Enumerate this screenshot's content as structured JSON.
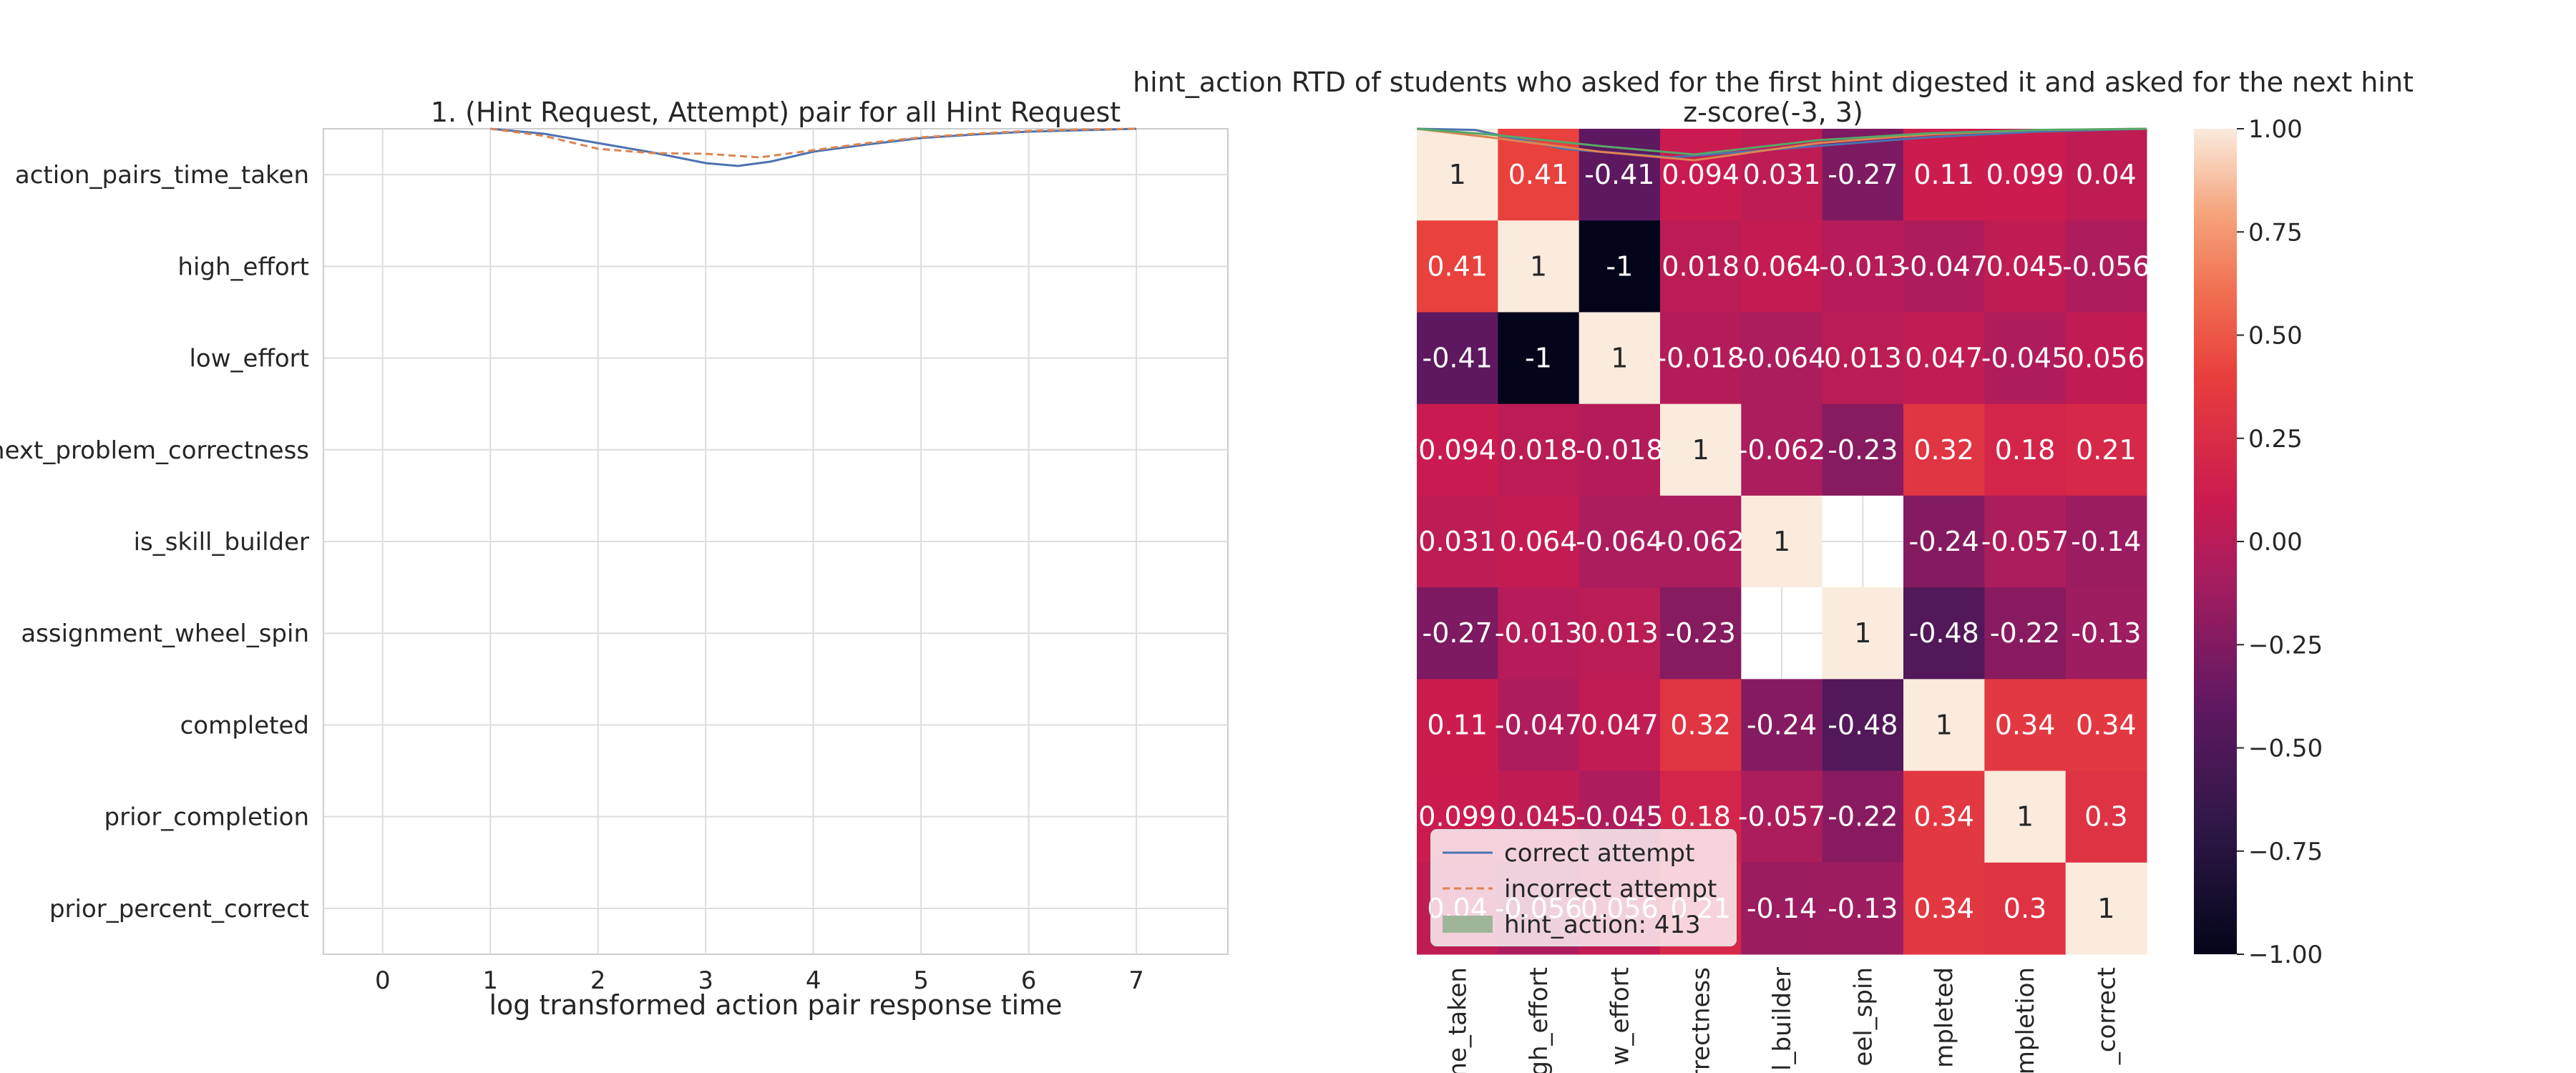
{
  "chart_data": [
    {
      "type": "line",
      "title": "1. (Hint Request, Attempt) pair for all Hint Request",
      "xlabel": "log transformed action pair response time",
      "xlim": [
        -0.55,
        7.85
      ],
      "xticks": [
        "0",
        "1",
        "2",
        "3",
        "4",
        "5",
        "6",
        "7"
      ],
      "xtick_values": [
        0,
        1,
        2,
        3,
        4,
        5,
        6,
        7
      ],
      "ylabels": [
        "action_pairs_time_taken",
        "high_effort",
        "low_effort",
        "next_problem_correctness",
        "is_skill_builder",
        "assignment_wheel_spin",
        "completed",
        "prior_completion",
        "prior_percent_correct"
      ],
      "grid": true,
      "series": [
        {
          "name": "correct attempt",
          "color": "#4c72b0",
          "dash": "solid",
          "x": [
            1.0,
            1.5,
            2.0,
            2.5,
            3.0,
            3.3,
            3.6,
            4.0,
            4.5,
            5.0,
            5.5,
            6.0,
            6.5,
            7.0
          ],
          "y": [
            0.0,
            0.07,
            0.2,
            0.33,
            0.48,
            0.52,
            0.46,
            0.32,
            0.22,
            0.13,
            0.08,
            0.04,
            0.02,
            0.0
          ]
        },
        {
          "name": "incorrect attempt",
          "color": "#dd8452",
          "dash": "dashed",
          "x": [
            1.0,
            1.5,
            2.0,
            2.5,
            3.0,
            3.5,
            4.0,
            4.5,
            5.0,
            5.5,
            6.0,
            6.5,
            7.0
          ],
          "y": [
            0.0,
            0.1,
            0.28,
            0.34,
            0.35,
            0.4,
            0.3,
            0.2,
            0.12,
            0.07,
            0.03,
            0.01,
            0.0
          ]
        }
      ]
    },
    {
      "type": "heatmap",
      "title": "hint_action RTD of students who asked for the first hint digested it and asked for the next hint\nz-score(-3, 3)",
      "title_lines": [
        "hint_action RTD of students who asked for the first hint digested it and asked for the next hint",
        "z-score(-3, 3)"
      ],
      "xticklabels": [
        "ime_taken",
        "gh_effort",
        "w_effort",
        "rrectness",
        "l_builder",
        "eel_spin",
        "mpleted",
        "mpletion",
        "_correct"
      ],
      "colorbar": {
        "min": -1.0,
        "max": 1.0,
        "ticks": [
          "-1.00",
          "-0.75",
          "-0.50",
          "-0.25",
          "0.00",
          "0.25",
          "0.50",
          "0.75",
          "1.00"
        ],
        "tick_values": [
          -1.0,
          -0.75,
          -0.5,
          -0.25,
          0.0,
          0.25,
          0.5,
          0.75,
          1.0
        ]
      },
      "matrix": [
        [
          1,
          0.41,
          -0.41,
          0.094,
          0.031,
          -0.27,
          0.11,
          0.099,
          0.04
        ],
        [
          0.41,
          1,
          -1,
          0.018,
          0.064,
          -0.013,
          -0.047,
          0.045,
          -0.056
        ],
        [
          -0.41,
          -1,
          1,
          -0.018,
          -0.064,
          0.013,
          0.047,
          -0.045,
          0.056
        ],
        [
          0.094,
          0.018,
          -0.018,
          1,
          -0.062,
          -0.23,
          0.32,
          0.18,
          0.21
        ],
        [
          0.031,
          0.064,
          -0.064,
          -0.062,
          1,
          null,
          -0.24,
          -0.057,
          -0.14
        ],
        [
          -0.27,
          -0.013,
          0.013,
          -0.23,
          null,
          1,
          -0.48,
          -0.22,
          -0.13
        ],
        [
          0.11,
          -0.047,
          0.047,
          0.32,
          -0.24,
          -0.48,
          1,
          0.34,
          0.34
        ],
        [
          0.099,
          0.045,
          -0.045,
          0.18,
          -0.057,
          -0.22,
          0.34,
          1,
          0.3
        ],
        [
          0.04,
          -0.056,
          0.056,
          0.21,
          -0.14,
          -0.13,
          0.34,
          0.3,
          1
        ]
      ],
      "cell_labels": [
        [
          "1",
          "0.41",
          "-0.41",
          "0.094",
          "0.031",
          "-0.27",
          "0.11",
          "0.099",
          "0.04"
        ],
        [
          "0.41",
          "1",
          "-1",
          "0.018",
          "0.064",
          "-0.013",
          "-0.047",
          "0.045",
          "-0.056"
        ],
        [
          "-0.41",
          "-1",
          "1",
          "-0.018",
          "-0.064",
          "0.013",
          "0.047",
          "-0.045",
          "0.056"
        ],
        [
          "0.094",
          "0.018",
          "-0.018",
          "1",
          "-0.062",
          "-0.23",
          "0.32",
          "0.18",
          "0.21"
        ],
        [
          "0.031",
          "0.064",
          "-0.064",
          "-0.062",
          "1",
          "",
          "-0.24",
          "-0.057",
          "-0.14"
        ],
        [
          "-0.27",
          "-0.013",
          "0.013",
          "-0.23",
          "",
          "1",
          "-0.48",
          "-0.22",
          "-0.13"
        ],
        [
          "0.11",
          "-0.047",
          "0.047",
          "0.32",
          "-0.24",
          "-0.48",
          "1",
          "0.34",
          "0.34"
        ],
        [
          "0.099",
          "0.045",
          "-0.045",
          "0.18",
          "-0.057",
          "-0.22",
          "0.34",
          "1",
          "0.3"
        ],
        [
          "0.04",
          "-0.056",
          "0.056",
          "0.21",
          "-0.14",
          "-0.13",
          "0.34",
          "0.3",
          "1"
        ]
      ],
      "overlay_lines": [
        {
          "color": "#4c72b0",
          "x": [
            0,
            0.08,
            0.2,
            0.35,
            0.5,
            0.7,
            0.85,
            1.0
          ],
          "y": [
            0.0,
            0.02,
            0.35,
            0.5,
            0.35,
            0.15,
            0.05,
            0.0
          ]
        },
        {
          "color": "#dd8452",
          "x": [
            0,
            0.1,
            0.25,
            0.38,
            0.55,
            0.7,
            0.85,
            1.0
          ],
          "y": [
            0.0,
            0.15,
            0.4,
            0.55,
            0.25,
            0.1,
            0.02,
            0.0
          ]
        },
        {
          "color": "#55a868",
          "x": [
            0,
            0.1,
            0.25,
            0.38,
            0.55,
            0.7,
            0.85,
            1.0
          ],
          "y": [
            0.0,
            0.1,
            0.3,
            0.45,
            0.2,
            0.08,
            0.02,
            0.0
          ]
        }
      ],
      "legend": {
        "placement": "lower-left",
        "items": [
          {
            "label": "correct attempt",
            "kind": "line",
            "color": "#4c72b0",
            "dash": "solid"
          },
          {
            "label": "incorrect attempt",
            "kind": "line",
            "color": "#dd8452",
            "dash": "dashed"
          },
          {
            "label": "hint_action: 413",
            "kind": "patch",
            "color": "#9fb59a"
          }
        ]
      }
    }
  ]
}
